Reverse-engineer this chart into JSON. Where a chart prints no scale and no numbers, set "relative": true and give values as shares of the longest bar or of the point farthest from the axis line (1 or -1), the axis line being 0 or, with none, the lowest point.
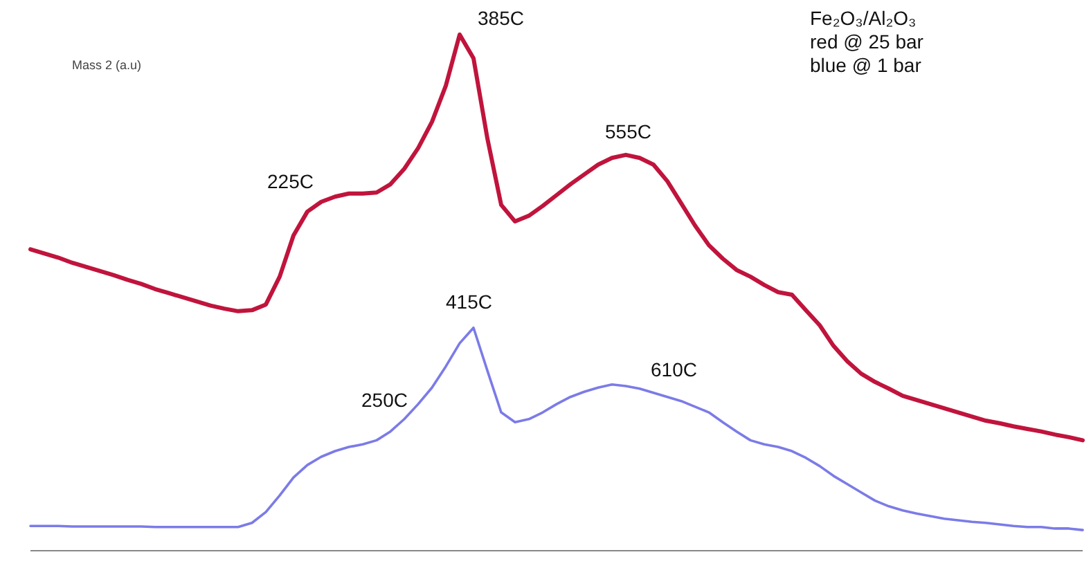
{
  "chart_data": {
    "type": "line",
    "relative": true,
    "ylabel": "Mass 2 (a.u)",
    "categories": [
      null,
      null,
      null,
      null,
      null,
      null,
      null,
      null,
      null,
      null,
      null,
      null,
      null,
      null,
      null,
      null,
      null,
      null,
      null,
      null,
      null,
      null,
      null,
      null,
      null,
      null,
      null,
      null,
      null,
      null,
      null,
      null,
      null,
      null,
      null,
      null,
      null,
      null,
      null,
      null,
      null,
      null,
      null,
      null,
      null,
      null,
      null,
      null,
      null,
      null,
      null,
      null,
      null,
      null,
      null,
      null,
      null,
      null,
      null,
      null,
      null,
      null,
      null,
      null,
      null,
      null,
      null,
      null,
      null,
      null,
      null,
      null,
      null,
      null,
      null,
      null,
      null
    ],
    "series": [
      {
        "color": "#c0143c",
        "values": [
          0.584,
          0.576,
          0.568,
          0.558,
          0.55,
          0.542,
          0.534,
          0.525,
          0.517,
          0.507,
          0.499,
          0.491,
          0.483,
          0.475,
          0.469,
          0.464,
          0.466,
          0.477,
          0.531,
          0.611,
          0.657,
          0.676,
          0.686,
          0.692,
          0.692,
          0.694,
          0.71,
          0.74,
          0.78,
          0.831,
          0.901,
          1,
          0.954,
          0.799,
          0.67,
          0.638,
          0.649,
          0.668,
          0.689,
          0.71,
          0.729,
          0.748,
          0.761,
          0.767,
          0.761,
          0.748,
          0.716,
          0.673,
          0.63,
          0.592,
          0.566,
          0.544,
          0.531,
          0.515,
          0.501,
          0.496,
          0.466,
          0.437,
          0.397,
          0.367,
          0.343,
          0.327,
          0.314,
          0.3,
          0.292,
          0.284,
          0.276,
          0.268,
          0.26,
          0.252,
          0.247,
          0.241,
          0.236,
          0.231,
          0.225,
          0.22,
          0.214
        ]
      },
      {
        "color": "#7b7be8",
        "values": [
          0.048,
          0.048,
          0.048,
          0.047,
          0.047,
          0.047,
          0.047,
          0.047,
          0.047,
          0.046,
          0.046,
          0.046,
          0.046,
          0.046,
          0.046,
          0.046,
          0.054,
          0.075,
          0.107,
          0.142,
          0.166,
          0.182,
          0.193,
          0.201,
          0.206,
          0.214,
          0.231,
          0.255,
          0.284,
          0.316,
          0.357,
          0.402,
          0.432,
          0.349,
          0.268,
          0.249,
          0.255,
          0.268,
          0.284,
          0.298,
          0.308,
          0.316,
          0.322,
          0.319,
          0.314,
          0.306,
          0.298,
          0.29,
          0.279,
          0.268,
          0.249,
          0.231,
          0.214,
          0.206,
          0.201,
          0.193,
          0.18,
          0.164,
          0.145,
          0.129,
          0.113,
          0.097,
          0.086,
          0.078,
          0.072,
          0.067,
          0.062,
          0.059,
          0.056,
          0.054,
          0.051,
          0.048,
          0.046,
          0.046,
          0.043,
          0.043,
          0.04
        ]
      }
    ],
    "annotations": [
      "385C",
      "225C",
      "555C",
      "415C",
      "250C",
      "610C",
      "Fe₂O₃/Al₂O₃",
      "red @ 25 bar",
      "blue @ 1 bar"
    ]
  }
}
